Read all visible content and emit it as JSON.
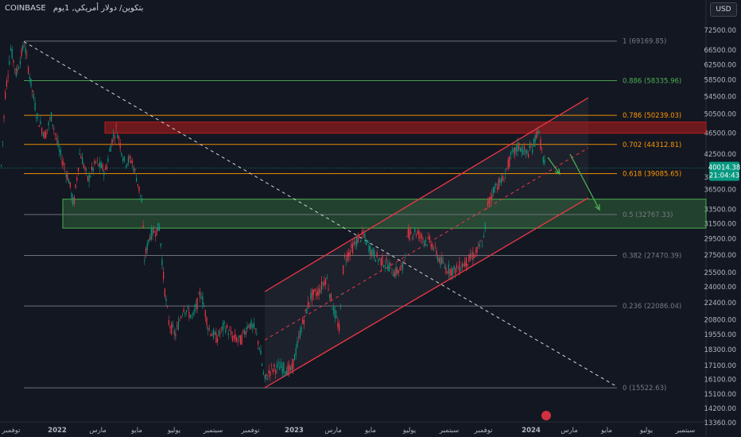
{
  "header": {
    "exchange": "COINBASE",
    "symbol_title": "بتكوين/ دولار أمريكي, 1يوم"
  },
  "toolbar": {
    "currency_button": "USD"
  },
  "current_price": {
    "value": "40014.38",
    "countdown": "21:04:43",
    "color": "#089981"
  },
  "chart_data": {
    "type": "candlestick",
    "title": "بتكوين/ دولار أمريكي, 1يوم",
    "y_scale": "log",
    "y_range": [
      13360,
      78000
    ],
    "y_ticks": [
      "72500.00",
      "66500.00",
      "62500.00",
      "58500.00",
      "54500.00",
      "50500.00",
      "46500.00",
      "42500.00",
      "38500.00",
      "36500.00",
      "33500.00",
      "31500.00",
      "29500.00",
      "27500.00",
      "25500.00",
      "24000.00",
      "22400.00",
      "20800.00",
      "19550.00",
      "18300.00",
      "17100.00",
      "16100.00",
      "15100.00",
      "14200.00",
      "13360.00"
    ],
    "x_ticks": [
      "توفمبر",
      "2022",
      "مارس",
      "مايو",
      "يوليو",
      "سبتمبر",
      "توفمبر",
      "2023",
      "مارس",
      "مايو",
      "يوليو",
      "سبتمبر",
      "توفمبر",
      "2024",
      "مارس",
      "مايو",
      "يوليو",
      "سبتمبر"
    ],
    "fib_levels": [
      {
        "ratio": "1",
        "price": 69169.85,
        "label": "1 (69169.85)",
        "color": "#787b86"
      },
      {
        "ratio": "0.886",
        "price": 58335.96,
        "label": "0.886 (58335.96)",
        "color": "#4caf50"
      },
      {
        "ratio": "0.786",
        "price": 50239.03,
        "label": "0.786 (50239.03)",
        "color": "#ff9800"
      },
      {
        "ratio": "0.702",
        "price": 44312.81,
        "label": "0.702 (44312.81)",
        "color": "#ff9800"
      },
      {
        "ratio": "0.618",
        "price": 39085.65,
        "label": "0.618 (39085.65)",
        "color": "#ff9800"
      },
      {
        "ratio": "0.5",
        "price": 32767.33,
        "label": "0.5 (32767.33)",
        "color": "#787b86"
      },
      {
        "ratio": "0.382",
        "price": 27470.39,
        "label": "0.382 (27470.39)",
        "color": "#787b86"
      },
      {
        "ratio": "0.236",
        "price": 22086.04,
        "label": "0.236 (22086.04)",
        "color": "#787b86"
      },
      {
        "ratio": "0",
        "price": 15522.63,
        "label": "0 (15522.63)",
        "color": "#787b86"
      }
    ],
    "zones": [
      {
        "name": "resistance",
        "low": 46500,
        "high": 48800,
        "color": "#b71c1c"
      },
      {
        "name": "support",
        "low": 30900,
        "high": 35000,
        "color": "#4caf50"
      }
    ],
    "path": [
      [
        0,
        38000
      ],
      [
        6,
        55000
      ],
      [
        13,
        67000
      ],
      [
        20,
        60000
      ],
      [
        30,
        68500
      ],
      [
        38,
        58000
      ],
      [
        46,
        50000
      ],
      [
        56,
        46000
      ],
      [
        64,
        50000
      ],
      [
        74,
        43000
      ],
      [
        86,
        38000
      ],
      [
        92,
        34000
      ],
      [
        100,
        43000
      ],
      [
        110,
        38000
      ],
      [
        120,
        41000
      ],
      [
        132,
        39500
      ],
      [
        140,
        45000
      ],
      [
        146,
        47500
      ],
      [
        156,
        41000
      ],
      [
        165,
        41500
      ],
      [
        172,
        38000
      ],
      [
        178,
        34500
      ],
      [
        181,
        27000
      ],
      [
        188,
        30000
      ],
      [
        194,
        30500
      ],
      [
        200,
        31000
      ],
      [
        206,
        24000
      ],
      [
        212,
        20500
      ],
      [
        220,
        19500
      ],
      [
        230,
        22000
      ],
      [
        242,
        21000
      ],
      [
        252,
        23500
      ],
      [
        262,
        20000
      ],
      [
        272,
        19200
      ],
      [
        282,
        20300
      ],
      [
        292,
        19300
      ],
      [
        302,
        19000
      ],
      [
        312,
        20500
      ],
      [
        320,
        20000
      ],
      [
        326,
        18500
      ],
      [
        332,
        16000
      ],
      [
        340,
        16800
      ],
      [
        352,
        17000
      ],
      [
        366,
        16700
      ],
      [
        378,
        20000
      ],
      [
        390,
        23000
      ],
      [
        400,
        23500
      ],
      [
        410,
        25000
      ],
      [
        418,
        22000
      ],
      [
        426,
        20000
      ],
      [
        432,
        27000
      ],
      [
        440,
        28000
      ],
      [
        450,
        29500
      ],
      [
        456,
        30000
      ],
      [
        466,
        28000
      ],
      [
        476,
        27000
      ],
      [
        486,
        26500
      ],
      [
        496,
        25500
      ],
      [
        506,
        26000
      ],
      [
        512,
        30000
      ],
      [
        522,
        30500
      ],
      [
        532,
        29500
      ],
      [
        542,
        29000
      ],
      [
        552,
        27000
      ],
      [
        560,
        26000
      ],
      [
        570,
        25700
      ],
      [
        580,
        26300
      ],
      [
        590,
        27000
      ],
      [
        600,
        28000
      ],
      [
        608,
        29500
      ],
      [
        612,
        34000
      ],
      [
        622,
        37000
      ],
      [
        632,
        38000
      ],
      [
        642,
        42000
      ],
      [
        652,
        44000
      ],
      [
        662,
        42500
      ],
      [
        670,
        44000
      ],
      [
        676,
        47500
      ],
      [
        682,
        42000
      ],
      [
        686,
        40000
      ]
    ],
    "channel": {
      "color": "#f23645"
    },
    "diagonal_line": {
      "from_price": 69000,
      "to_price": 15600
    }
  }
}
